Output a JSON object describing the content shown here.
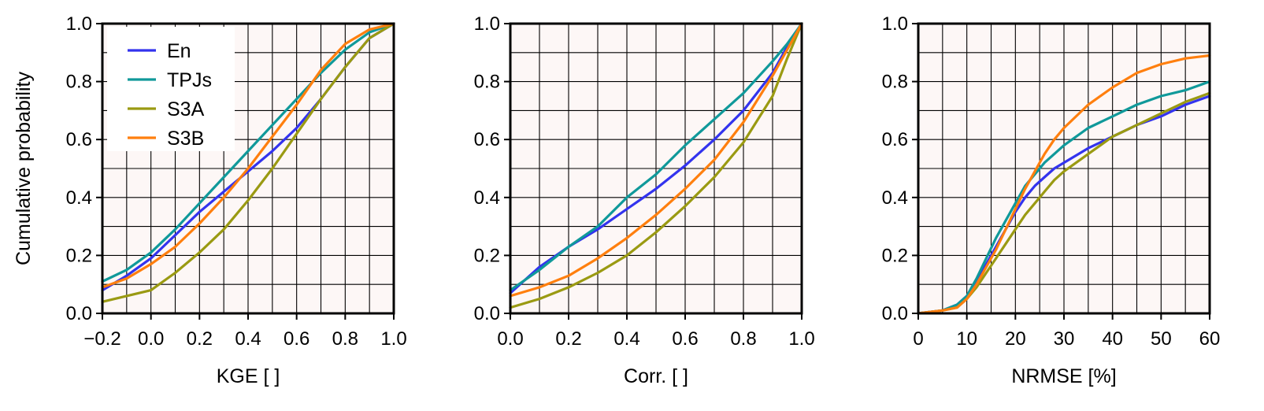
{
  "chart_data": [
    {
      "type": "line",
      "title": "",
      "xlabel": "KGE [ ]",
      "ylabel": "Cumulative probability",
      "xlim": [
        -0.2,
        1.0
      ],
      "ylim": [
        0.0,
        1.0
      ],
      "xticks": [
        -0.2,
        0.0,
        0.2,
        0.4,
        0.6,
        0.8,
        1.0
      ],
      "xtick_labels": [
        "−0.2",
        "0.0",
        "0.2",
        "0.4",
        "0.6",
        "0.8",
        "1.0"
      ],
      "yticks": [
        0.0,
        0.2,
        0.4,
        0.6,
        0.8,
        1.0
      ],
      "ytick_labels": [
        "0.0",
        "0.2",
        "0.4",
        "0.6",
        "0.8",
        "1.0"
      ],
      "grid": true,
      "legend": "top-left",
      "series": [
        {
          "name": "En",
          "color": "#3333ee",
          "x": [
            -0.2,
            -0.1,
            0.0,
            0.1,
            0.2,
            0.3,
            0.4,
            0.5,
            0.6,
            0.7,
            0.8,
            0.9,
            1.0
          ],
          "y": [
            0.08,
            0.13,
            0.19,
            0.27,
            0.35,
            0.42,
            0.49,
            0.56,
            0.64,
            0.74,
            0.85,
            0.95,
            1.0
          ]
        },
        {
          "name": "TPJs",
          "color": "#10999a",
          "x": [
            -0.2,
            -0.1,
            0.0,
            0.1,
            0.2,
            0.3,
            0.4,
            0.5,
            0.6,
            0.7,
            0.8,
            0.9,
            1.0
          ],
          "y": [
            0.11,
            0.15,
            0.21,
            0.29,
            0.38,
            0.47,
            0.56,
            0.65,
            0.74,
            0.83,
            0.91,
            0.97,
            1.0
          ]
        },
        {
          "name": "S3A",
          "color": "#9a9a12",
          "x": [
            -0.2,
            -0.1,
            0.0,
            0.1,
            0.2,
            0.3,
            0.4,
            0.5,
            0.6,
            0.7,
            0.8,
            0.9,
            1.0
          ],
          "y": [
            0.04,
            0.06,
            0.08,
            0.14,
            0.21,
            0.29,
            0.39,
            0.5,
            0.62,
            0.74,
            0.85,
            0.95,
            1.0
          ]
        },
        {
          "name": "S3B",
          "color": "#ff7f0e",
          "x": [
            -0.2,
            -0.1,
            0.0,
            0.1,
            0.2,
            0.3,
            0.4,
            0.5,
            0.6,
            0.7,
            0.8,
            0.9,
            1.0
          ],
          "y": [
            0.09,
            0.12,
            0.17,
            0.23,
            0.31,
            0.4,
            0.5,
            0.61,
            0.72,
            0.84,
            0.93,
            0.98,
            1.0
          ]
        }
      ]
    },
    {
      "type": "line",
      "title": "",
      "xlabel": "Corr. [ ]",
      "ylabel": "",
      "xlim": [
        0.0,
        1.0
      ],
      "ylim": [
        0.0,
        1.0
      ],
      "xticks": [
        0.0,
        0.2,
        0.4,
        0.6,
        0.8,
        1.0
      ],
      "xtick_labels": [
        "0.0",
        "0.2",
        "0.4",
        "0.6",
        "0.8",
        "1.0"
      ],
      "yticks": [
        0.0,
        0.2,
        0.4,
        0.6,
        0.8,
        1.0
      ],
      "ytick_labels": [
        "0.0",
        "0.2",
        "0.4",
        "0.6",
        "0.8",
        "1.0"
      ],
      "grid": true,
      "series": [
        {
          "name": "En",
          "color": "#3333ee",
          "x": [
            0.0,
            0.1,
            0.2,
            0.3,
            0.4,
            0.5,
            0.6,
            0.7,
            0.8,
            0.9,
            0.95,
            1.0
          ],
          "y": [
            0.07,
            0.16,
            0.23,
            0.29,
            0.36,
            0.43,
            0.51,
            0.6,
            0.7,
            0.83,
            0.92,
            1.0
          ]
        },
        {
          "name": "TPJs",
          "color": "#10999a",
          "x": [
            0.0,
            0.1,
            0.2,
            0.3,
            0.4,
            0.5,
            0.6,
            0.7,
            0.8,
            0.9,
            0.95,
            1.0
          ],
          "y": [
            0.08,
            0.15,
            0.23,
            0.3,
            0.4,
            0.48,
            0.58,
            0.67,
            0.76,
            0.87,
            0.93,
            1.0
          ]
        },
        {
          "name": "S3A",
          "color": "#9a9a12",
          "x": [
            0.0,
            0.1,
            0.2,
            0.3,
            0.4,
            0.5,
            0.6,
            0.7,
            0.8,
            0.9,
            0.95,
            1.0
          ],
          "y": [
            0.02,
            0.05,
            0.09,
            0.14,
            0.2,
            0.28,
            0.37,
            0.47,
            0.59,
            0.75,
            0.88,
            1.0
          ]
        },
        {
          "name": "S3B",
          "color": "#ff7f0e",
          "x": [
            0.0,
            0.1,
            0.2,
            0.3,
            0.4,
            0.5,
            0.6,
            0.7,
            0.8,
            0.9,
            0.95,
            1.0
          ],
          "y": [
            0.06,
            0.09,
            0.13,
            0.19,
            0.26,
            0.34,
            0.43,
            0.53,
            0.66,
            0.82,
            0.91,
            1.0
          ]
        }
      ]
    },
    {
      "type": "line",
      "title": "",
      "xlabel": "NRMSE [%]",
      "ylabel": "",
      "xlim": [
        0,
        60
      ],
      "ylim": [
        0.0,
        1.0
      ],
      "xticks": [
        0,
        10,
        20,
        30,
        40,
        50,
        60
      ],
      "xtick_labels": [
        "0",
        "10",
        "20",
        "30",
        "40",
        "50",
        "60"
      ],
      "yticks": [
        0.0,
        0.2,
        0.4,
        0.6,
        0.8,
        1.0
      ],
      "ytick_labels": [
        "0.0",
        "0.2",
        "0.4",
        "0.6",
        "0.8",
        "1.0"
      ],
      "grid": true,
      "series": [
        {
          "name": "En",
          "color": "#3333ee",
          "x": [
            0,
            5,
            8,
            10,
            12,
            14,
            16,
            18,
            20,
            22,
            24,
            26,
            28,
            30,
            35,
            40,
            45,
            50,
            55,
            60
          ],
          "y": [
            0.0,
            0.01,
            0.03,
            0.06,
            0.11,
            0.17,
            0.23,
            0.29,
            0.35,
            0.4,
            0.44,
            0.47,
            0.5,
            0.52,
            0.57,
            0.61,
            0.65,
            0.68,
            0.72,
            0.75
          ]
        },
        {
          "name": "TPJs",
          "color": "#10999a",
          "x": [
            0,
            5,
            8,
            10,
            12,
            14,
            16,
            18,
            20,
            22,
            24,
            26,
            28,
            30,
            35,
            40,
            45,
            50,
            55,
            60
          ],
          "y": [
            0.0,
            0.01,
            0.03,
            0.06,
            0.12,
            0.19,
            0.26,
            0.32,
            0.38,
            0.44,
            0.48,
            0.52,
            0.55,
            0.58,
            0.64,
            0.68,
            0.72,
            0.75,
            0.77,
            0.8
          ]
        },
        {
          "name": "S3A",
          "color": "#9a9a12",
          "x": [
            0,
            5,
            8,
            10,
            12,
            14,
            16,
            18,
            20,
            22,
            24,
            26,
            28,
            30,
            35,
            40,
            45,
            50,
            55,
            60
          ],
          "y": [
            0.0,
            0.01,
            0.02,
            0.05,
            0.09,
            0.14,
            0.19,
            0.24,
            0.29,
            0.34,
            0.38,
            0.42,
            0.46,
            0.49,
            0.55,
            0.61,
            0.65,
            0.69,
            0.73,
            0.76
          ]
        },
        {
          "name": "S3B",
          "color": "#ff7f0e",
          "x": [
            0,
            5,
            8,
            10,
            12,
            14,
            16,
            18,
            20,
            22,
            24,
            26,
            28,
            30,
            35,
            40,
            45,
            50,
            55,
            60
          ],
          "y": [
            0.0,
            0.01,
            0.02,
            0.05,
            0.1,
            0.16,
            0.22,
            0.29,
            0.36,
            0.43,
            0.49,
            0.55,
            0.6,
            0.64,
            0.72,
            0.78,
            0.83,
            0.86,
            0.88,
            0.89
          ]
        }
      ]
    }
  ]
}
